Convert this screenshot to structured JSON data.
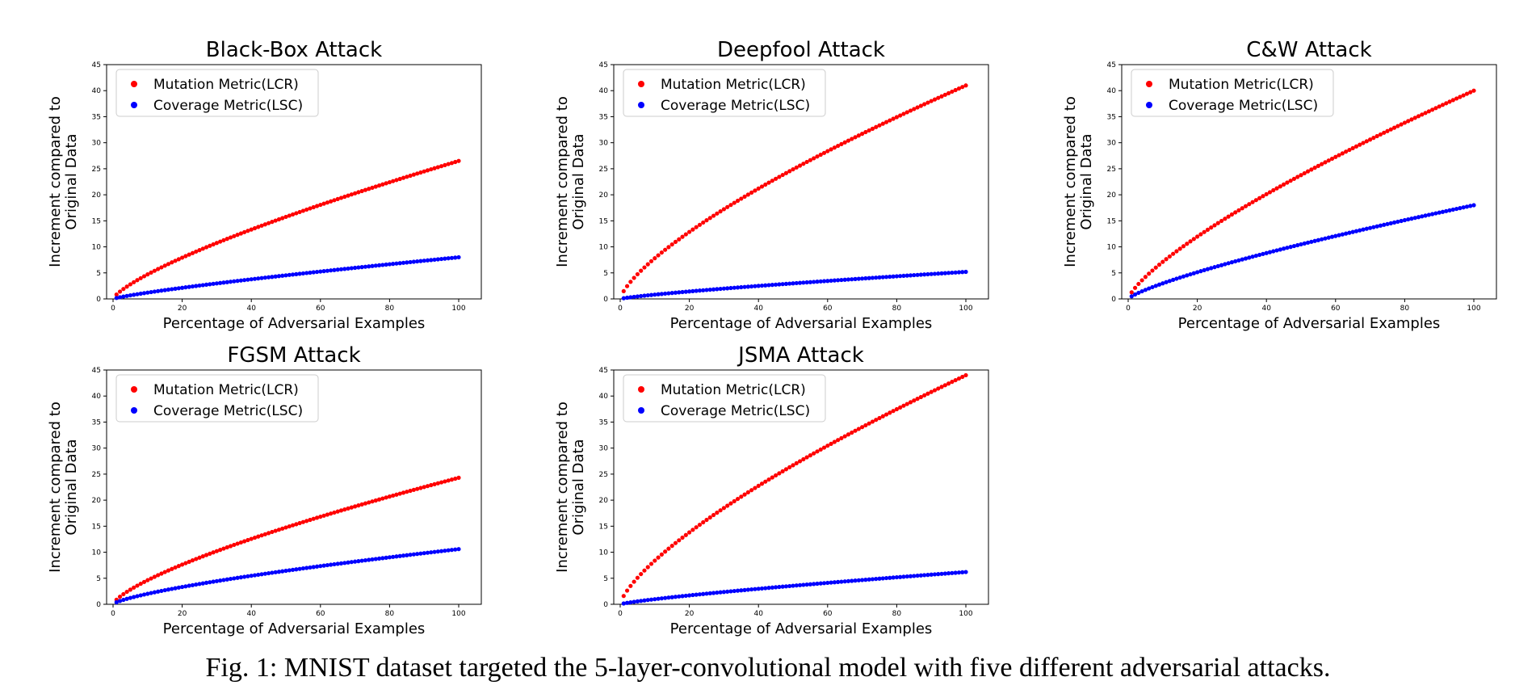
{
  "figure": {
    "caption": "Fig. 1: MNIST dataset targeted the 5-layer-convolutional model with five different adversarial attacks.",
    "legend": [
      "Mutation Metric(LCR)",
      "Coverage Metric(LSC)"
    ],
    "colors": {
      "lcr": "#ff0000",
      "lsc": "#0000ff"
    }
  },
  "chart_data": [
    {
      "type": "scatter",
      "title": "Black-Box Attack",
      "xlabel": "Percentage of Adversarial Examples",
      "ylabel": "Increment compared to Original Data",
      "xlim": [
        0,
        100
      ],
      "ylim": [
        0,
        45
      ],
      "xticks": [
        0,
        20,
        40,
        60,
        80,
        100
      ],
      "yticks": [
        0,
        5,
        10,
        15,
        20,
        25,
        30,
        35,
        40,
        45
      ],
      "legend_position": "top-left",
      "series": [
        {
          "name": "Mutation Metric(LCR)",
          "color": "#ff0000",
          "x": [
            1,
            100
          ],
          "y_end": 26.5,
          "curve": 0.75
        },
        {
          "name": "Coverage Metric(LSC)",
          "color": "#0000ff",
          "x": [
            1,
            100
          ],
          "y_end": 8.0,
          "curve": 0.82
        }
      ]
    },
    {
      "type": "scatter",
      "title": "Deepfool Attack",
      "xlabel": "Percentage of Adversarial Examples",
      "ylabel": "Increment compared to Original Data",
      "xlim": [
        0,
        100
      ],
      "ylim": [
        0,
        45
      ],
      "xticks": [
        0,
        20,
        40,
        60,
        80,
        100
      ],
      "yticks": [
        0,
        5,
        10,
        15,
        20,
        25,
        30,
        35,
        40,
        45
      ],
      "legend_position": "top-left",
      "series": [
        {
          "name": "Mutation Metric(LCR)",
          "color": "#ff0000",
          "x": [
            1,
            100
          ],
          "y_end": 41.0,
          "curve": 0.72
        },
        {
          "name": "Coverage Metric(LSC)",
          "color": "#0000ff",
          "x": [
            1,
            100
          ],
          "y_end": 5.2,
          "curve": 0.8
        }
      ]
    },
    {
      "type": "scatter",
      "title": "C&W Attack",
      "xlabel": "Percentage of Adversarial Examples",
      "ylabel": "Increment compared to Original Data",
      "xlim": [
        0,
        100
      ],
      "ylim": [
        0,
        45
      ],
      "xticks": [
        0,
        20,
        40,
        60,
        80,
        100
      ],
      "yticks": [
        0,
        5,
        10,
        15,
        20,
        25,
        30,
        35,
        40,
        45
      ],
      "legend_position": "top-left",
      "series": [
        {
          "name": "Mutation Metric(LCR)",
          "color": "#ff0000",
          "x": [
            1,
            100
          ],
          "y_end": 40.0,
          "curve": 0.75
        },
        {
          "name": "Coverage Metric(LSC)",
          "color": "#0000ff",
          "x": [
            1,
            100
          ],
          "y_end": 18.0,
          "curve": 0.78
        }
      ]
    },
    {
      "type": "scatter",
      "title": "FGSM Attack",
      "xlabel": "Percentage of Adversarial Examples",
      "ylabel": "Increment compared to Original Data",
      "xlim": [
        0,
        100
      ],
      "ylim": [
        0,
        45
      ],
      "xticks": [
        0,
        20,
        40,
        60,
        80,
        100
      ],
      "yticks": [
        0,
        5,
        10,
        15,
        20,
        25,
        30,
        35,
        40,
        45
      ],
      "legend_position": "top-left",
      "series": [
        {
          "name": "Mutation Metric(LCR)",
          "color": "#ff0000",
          "x": [
            1,
            100
          ],
          "y_end": 24.3,
          "curve": 0.72
        },
        {
          "name": "Coverage Metric(LSC)",
          "color": "#0000ff",
          "x": [
            1,
            100
          ],
          "y_end": 10.6,
          "curve": 0.72
        }
      ]
    },
    {
      "type": "scatter",
      "title": "JSMA Attack",
      "xlabel": "Percentage of Adversarial Examples",
      "ylabel": "Increment compared to Original Data",
      "xlim": [
        0,
        100
      ],
      "ylim": [
        0,
        45
      ],
      "xticks": [
        0,
        20,
        40,
        60,
        80,
        100
      ],
      "yticks": [
        0,
        5,
        10,
        15,
        20,
        25,
        30,
        35,
        40,
        45
      ],
      "legend_position": "top-left",
      "series": [
        {
          "name": "Mutation Metric(LCR)",
          "color": "#ff0000",
          "x": [
            1,
            100
          ],
          "y_end": 44.0,
          "curve": 0.72
        },
        {
          "name": "Coverage Metric(LSC)",
          "color": "#0000ff",
          "x": [
            1,
            100
          ],
          "y_end": 6.2,
          "curve": 0.8
        }
      ]
    }
  ]
}
